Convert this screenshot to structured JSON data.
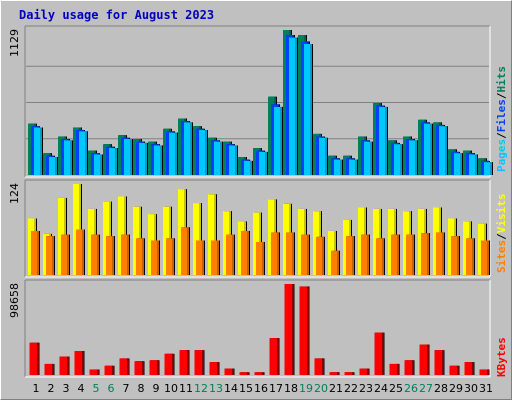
{
  "title": "Daily usage for August 2023",
  "colors": {
    "background": "#c0c0c0",
    "title": "#0000c0",
    "hits": "#00805c",
    "files": "#0040ff",
    "pages": "#00c8ff",
    "visits": "#ffff00",
    "sites": "#ff8000",
    "kbytes": "#ff0000",
    "weekend_label": "#00805c",
    "weekday_label": "#000000"
  },
  "right_labels": {
    "top": {
      "pages": "Pages",
      "sep1": "/",
      "files": "Files",
      "sep2": "/",
      "hits": "Hits"
    },
    "mid": {
      "sites": "Sites",
      "sep": "/",
      "visits": "Visits"
    },
    "bottom": {
      "kbytes": "KBytes"
    }
  },
  "chart_data": [
    {
      "type": "bar",
      "title": "Daily usage for August 2023",
      "panel": "top",
      "ymax_label": "1129",
      "ylim": [
        0,
        1129
      ],
      "categories": [
        "1",
        "2",
        "3",
        "4",
        "5",
        "6",
        "7",
        "8",
        "9",
        "10",
        "11",
        "12",
        "13",
        "14",
        "15",
        "16",
        "17",
        "18",
        "19",
        "20",
        "21",
        "22",
        "23",
        "24",
        "25",
        "26",
        "27",
        "28",
        "29",
        "30",
        "31"
      ],
      "weekend_days": [
        "5",
        "6",
        "12",
        "13",
        "19",
        "20",
        "26",
        "27"
      ],
      "series": [
        {
          "name": "Hits",
          "values": [
            400,
            170,
            300,
            370,
            190,
            240,
            310,
            280,
            260,
            360,
            440,
            380,
            290,
            260,
            140,
            210,
            610,
            1129,
            1090,
            320,
            150,
            150,
            300,
            560,
            270,
            300,
            430,
            410,
            200,
            190,
            130
          ]
        },
        {
          "name": "Files",
          "values": [
            380,
            150,
            280,
            350,
            170,
            220,
            290,
            260,
            240,
            340,
            420,
            360,
            270,
            240,
            120,
            190,
            550,
            1090,
            1040,
            300,
            130,
            130,
            270,
            540,
            250,
            280,
            410,
            390,
            180,
            170,
            110
          ]
        },
        {
          "name": "Pages",
          "values": [
            370,
            140,
            270,
            340,
            160,
            210,
            280,
            250,
            230,
            330,
            410,
            350,
            260,
            230,
            110,
            180,
            530,
            1070,
            1020,
            290,
            120,
            120,
            260,
            530,
            240,
            270,
            400,
            380,
            170,
            160,
            100
          ]
        }
      ]
    },
    {
      "type": "bar",
      "panel": "middle",
      "ymax_label": "124",
      "ylim": [
        0,
        124
      ],
      "categories": [
        "1",
        "2",
        "3",
        "4",
        "5",
        "6",
        "7",
        "8",
        "9",
        "10",
        "11",
        "12",
        "13",
        "14",
        "15",
        "16",
        "17",
        "18",
        "19",
        "20",
        "21",
        "22",
        "23",
        "24",
        "25",
        "26",
        "27",
        "28",
        "29",
        "30",
        "31"
      ],
      "series": [
        {
          "name": "Visits",
          "values": [
            77,
            56,
            105,
            124,
            90,
            100,
            107,
            93,
            83,
            93,
            117,
            98,
            110,
            87,
            73,
            85,
            103,
            97,
            90,
            87,
            60,
            75,
            92,
            90,
            90,
            87,
            90,
            92,
            77,
            73,
            70
          ]
        },
        {
          "name": "Sites",
          "values": [
            60,
            53,
            55,
            62,
            55,
            53,
            55,
            50,
            47,
            50,
            65,
            47,
            47,
            55,
            60,
            45,
            58,
            58,
            55,
            52,
            33,
            53,
            55,
            50,
            55,
            55,
            57,
            58,
            53,
            50,
            47
          ]
        }
      ]
    },
    {
      "type": "bar",
      "panel": "bottom",
      "ymax_label": "98658",
      "ylim": [
        0,
        98658
      ],
      "categories": [
        "1",
        "2",
        "3",
        "4",
        "5",
        "6",
        "7",
        "8",
        "9",
        "10",
        "11",
        "12",
        "13",
        "14",
        "15",
        "16",
        "17",
        "18",
        "19",
        "20",
        "21",
        "22",
        "23",
        "24",
        "25",
        "26",
        "27",
        "28",
        "29",
        "30",
        "31"
      ],
      "series": [
        {
          "name": "KBytes",
          "values": [
            35000,
            12000,
            20000,
            26000,
            6000,
            10000,
            18000,
            15000,
            16000,
            23000,
            27000,
            27000,
            14000,
            7000,
            3000,
            3000,
            40000,
            98658,
            96000,
            18000,
            3000,
            3000,
            7000,
            46000,
            12000,
            16000,
            33000,
            27000,
            10000,
            14000,
            6000
          ]
        }
      ]
    }
  ]
}
